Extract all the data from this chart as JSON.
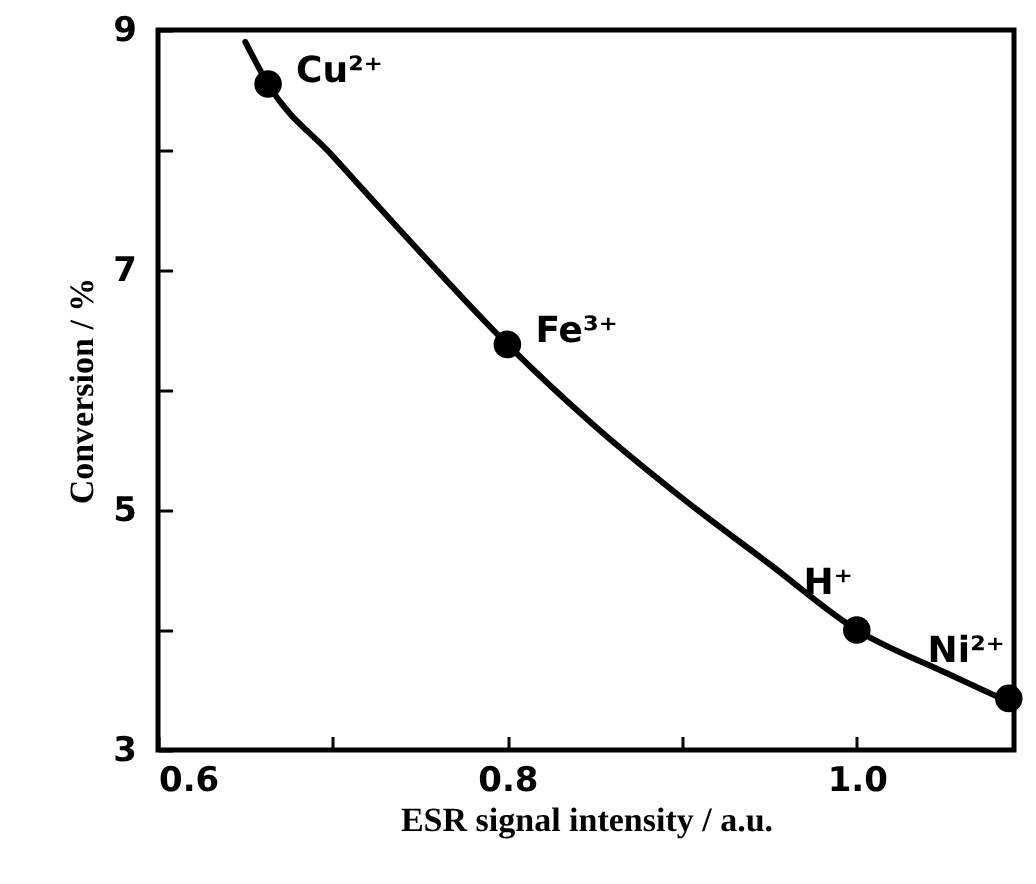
{
  "chart_data": {
    "type": "scatter",
    "xlabel": "ESR signal intensity / a.u.",
    "ylabel": "Conversion / %",
    "xlim": [
      0.6,
      1.09
    ],
    "xticks": [
      {
        "value": 0.6,
        "label": "0.6"
      },
      {
        "value": 0.7,
        "label": null
      },
      {
        "value": 0.8,
        "label": "0.8"
      },
      {
        "value": 0.9,
        "label": null
      },
      {
        "value": 1.0,
        "label": "1.0"
      }
    ],
    "ylim": [
      3,
      9
    ],
    "yticks": [
      3,
      {
        "value": 4,
        "label": null
      },
      5,
      {
        "value": 6,
        "label": null
      },
      7,
      {
        "value": 8,
        "label": null
      },
      9
    ],
    "marker": "circle",
    "grid": false,
    "series": [
      {
        "type": "line",
        "marker": "none",
        "color": "#000000",
        "x": [
          0.65,
          0.663,
          0.7,
          0.75,
          0.8,
          0.85,
          0.9,
          0.95,
          1.0,
          1.05,
          1.09
        ],
        "values": [
          8.9,
          8.55,
          7.95,
          7.15,
          6.38,
          5.7,
          5.1,
          4.55,
          4.0,
          3.65,
          3.38
        ]
      },
      {
        "color": "#000000",
        "x": [
          0.663,
          0.8,
          1.0,
          1.087
        ],
        "values": [
          8.55,
          6.38,
          4.0,
          3.43
        ]
      }
    ],
    "annotations": [
      {
        "text": "Cu²⁺",
        "x": 0.663,
        "y": 8.55
      },
      {
        "text": "Fe³⁺",
        "x": 0.8,
        "y": 6.38
      },
      {
        "text": "H⁺",
        "x": 1.0,
        "y": 4.0
      },
      {
        "text": "Ni²⁺",
        "x": 1.087,
        "y": 3.43
      }
    ]
  }
}
